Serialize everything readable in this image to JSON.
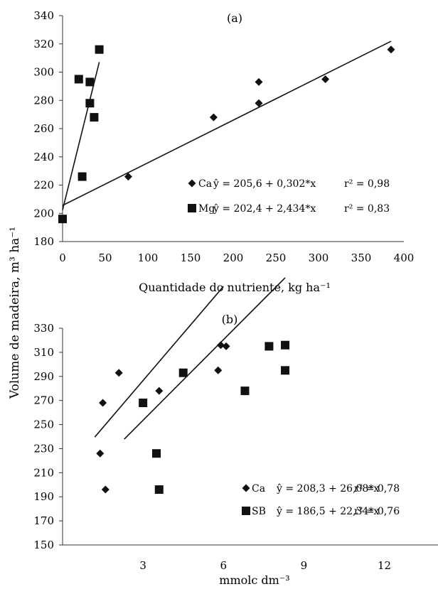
{
  "ylabel": "Volume de madeira, m³ ha⁻¹",
  "chart_data": [
    {
      "type": "scatter",
      "title": "(a)",
      "xlabel": "Quantidade do nutriente, kg ha⁻¹",
      "xlim": [
        0,
        400
      ],
      "ylim": [
        180,
        340
      ],
      "xticks": [
        "0",
        "50",
        "100",
        "150",
        "200",
        "250",
        "300",
        "350",
        "400"
      ],
      "yticks": [
        "180",
        "200",
        "220",
        "240",
        "260",
        "280",
        "300",
        "320",
        "340"
      ],
      "series": [
        {
          "name": "Ca",
          "marker": "diamond",
          "equation": "ŷ = 205,6 + 0,302*x",
          "r2": "r² = 0,98",
          "intercept": 205.6,
          "slope": 0.302,
          "fit_x": [
            0,
            385
          ],
          "points": [
            [
              0,
              196
            ],
            [
              77,
              226
            ],
            [
              177,
              268
            ],
            [
              230,
              293
            ],
            [
              230,
              278
            ],
            [
              308,
              295
            ],
            [
              385,
              316
            ]
          ]
        },
        {
          "name": "Mg",
          "marker": "square",
          "equation": "ŷ = 202,4  + 2,434*x",
          "r2": "r² = 0,83",
          "intercept": 202.4,
          "slope": 2.434,
          "fit_x": [
            0,
            43
          ],
          "points": [
            [
              0,
              196
            ],
            [
              19,
              295
            ],
            [
              23,
              226
            ],
            [
              32,
              293
            ],
            [
              32,
              278
            ],
            [
              37,
              268
            ],
            [
              43,
              316
            ]
          ]
        }
      ]
    },
    {
      "type": "scatter",
      "title": "(b)",
      "xlabel": "mmolc dm⁻³",
      "xlim": [
        0,
        14
      ],
      "ylim": [
        150,
        330
      ],
      "xticks": [
        "3",
        "6",
        "9",
        "12"
      ],
      "xtick_values": [
        3,
        6,
        9,
        12
      ],
      "yticks": [
        "150",
        "170",
        "190",
        "210",
        "230",
        "250",
        "270",
        "290",
        "310",
        "330"
      ],
      "series": [
        {
          "name": "Ca",
          "marker": "diamond",
          "equation": "ŷ = 208,3 + 26,08*x",
          "r2": "r² = 0,78",
          "intercept": 208.3,
          "slope": 26.08,
          "fit_x": [
            1.2,
            6.0
          ],
          "points": [
            [
              1.4,
              226
            ],
            [
              1.5,
              268
            ],
            [
              1.6,
              196
            ],
            [
              2.1,
              293
            ],
            [
              3.6,
              278
            ],
            [
              5.8,
              295
            ],
            [
              5.9,
              316
            ],
            [
              6.1,
              315
            ]
          ]
        },
        {
          "name": "SB",
          "marker": "square",
          "equation": "ŷ = 186,5 + 22,34*x",
          "r2": "r² = 0,76",
          "intercept": 186.5,
          "slope": 22.34,
          "fit_x": [
            2.3,
            8.3
          ],
          "points": [
            [
              3.0,
              268
            ],
            [
              3.5,
              226
            ],
            [
              3.6,
              196
            ],
            [
              4.5,
              293
            ],
            [
              6.8,
              278
            ],
            [
              7.7,
              315
            ],
            [
              8.3,
              316
            ],
            [
              8.3,
              295
            ]
          ]
        }
      ]
    }
  ]
}
